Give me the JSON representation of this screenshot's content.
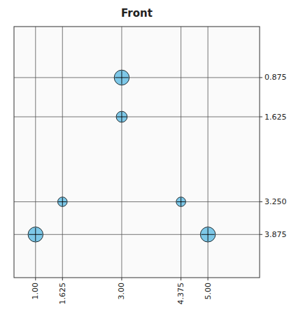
{
  "chart_data": {
    "type": "scatter",
    "title": "Front",
    "x": [
      3.0,
      3.0,
      1.625,
      4.375,
      1.0,
      5.0
    ],
    "values": [
      0.875,
      1.625,
      3.25,
      3.25,
      3.875,
      3.875
    ],
    "sizes": [
      300,
      160,
      120,
      120,
      300,
      300
    ],
    "color": "#7ec8e8",
    "xlim": [
      0.5,
      6.2
    ],
    "ylim": [
      4.7,
      -0.1
    ],
    "xticks": [
      {
        "value": 1.0,
        "label": "1.00"
      },
      1.625,
      {
        "value": 3.0,
        "label": "3.00"
      },
      4.375,
      {
        "value": 5.0,
        "label": "5.00"
      }
    ],
    "yticks": [
      0.875,
      1.625,
      {
        "value": 3.25,
        "label": "3.250"
      },
      3.875
    ],
    "grid": true
  }
}
